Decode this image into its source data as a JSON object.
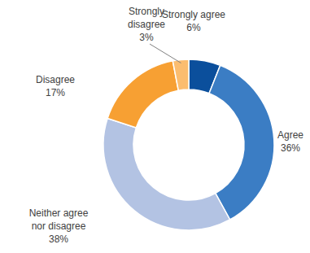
{
  "chart_data": {
    "type": "donut",
    "categories": [
      "Strongly agree",
      "Agree",
      "Neither agree nor disagree",
      "Disagree",
      "Strongly disagree"
    ],
    "values": [
      6,
      36,
      38,
      17,
      3
    ],
    "value_labels": [
      "6%",
      "36%",
      "38%",
      "17%",
      "3%"
    ],
    "colors": [
      "#0b4f9c",
      "#3b7dc4",
      "#b3c3e3",
      "#f7a033",
      "#fbbd6f"
    ],
    "data_labels": true
  }
}
